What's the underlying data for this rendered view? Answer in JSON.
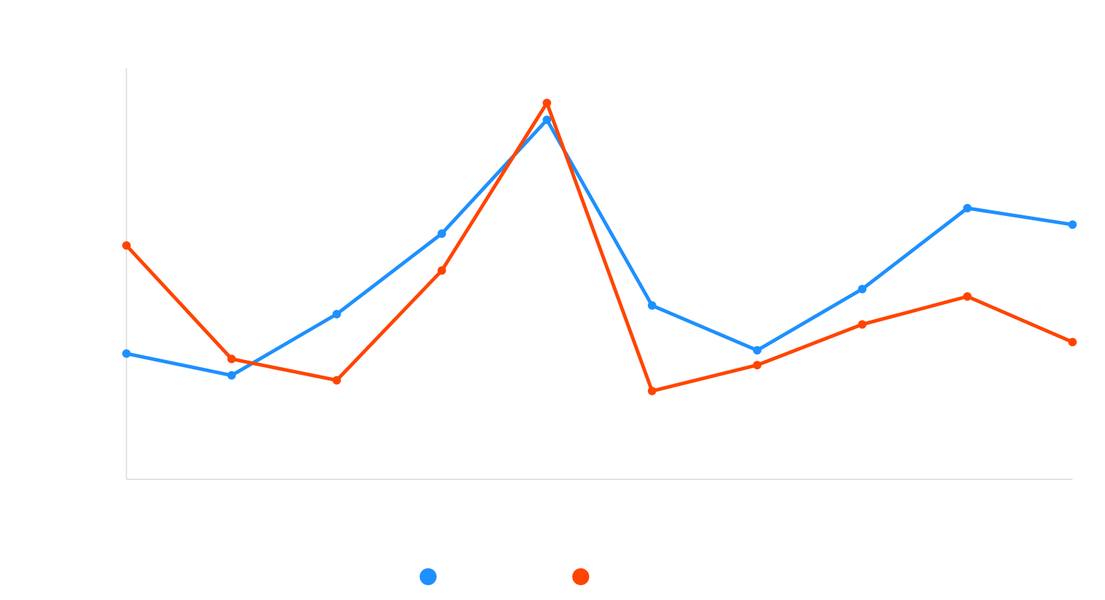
{
  "chart_data": {
    "type": "line",
    "title": "",
    "xlabel": "",
    "ylabel": "",
    "x": [
      1,
      2,
      3,
      4,
      5,
      6,
      7,
      8,
      9,
      10
    ],
    "ylim": [
      0,
      100
    ],
    "grid": false,
    "legend_position": "bottom",
    "series": [
      {
        "color": "#1e90ff",
        "values": [
          30.6,
          25.3,
          40.2,
          59.8,
          87.5,
          42.3,
          31.4,
          46.3,
          66.0,
          62.0
        ]
      },
      {
        "color": "#ff4500",
        "values": [
          56.9,
          29.3,
          24.1,
          50.8,
          91.6,
          21.5,
          27.8,
          37.7,
          44.5,
          33.4
        ]
      }
    ]
  }
}
